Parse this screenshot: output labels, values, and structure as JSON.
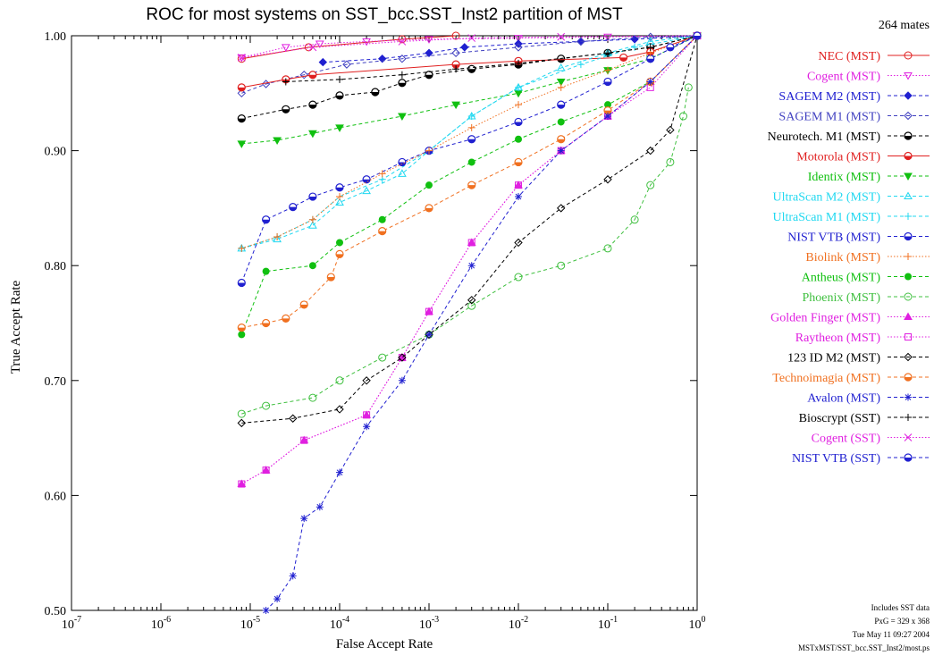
{
  "chart_data": {
    "type": "line",
    "title": "ROC for most systems on SST_bcc.SST_Inst2 partition of MST",
    "xlabel": "False Accept Rate",
    "ylabel": "True Accept Rate",
    "xscale": "log",
    "xlim": [
      1e-07,
      1
    ],
    "ylim": [
      0.5,
      1.0
    ],
    "grid": false,
    "legend_position": "right",
    "mates_note": "264 mates",
    "x_ticks": [
      {
        "value": 1e-07,
        "base": "10",
        "exp": "-7"
      },
      {
        "value": 1e-06,
        "base": "10",
        "exp": "-6"
      },
      {
        "value": 1e-05,
        "base": "10",
        "exp": "-5"
      },
      {
        "value": 0.0001,
        "base": "10",
        "exp": "-4"
      },
      {
        "value": 0.001,
        "base": "10",
        "exp": "-3"
      },
      {
        "value": 0.01,
        "base": "10",
        "exp": "-2"
      },
      {
        "value": 0.1,
        "base": "10",
        "exp": "-1"
      },
      {
        "value": 1,
        "base": "10",
        "exp": "0"
      }
    ],
    "y_ticks": [
      {
        "value": 0.5,
        "label": "0.50"
      },
      {
        "value": 0.6,
        "label": "0.60"
      },
      {
        "value": 0.7,
        "label": "0.70"
      },
      {
        "value": 0.8,
        "label": "0.80"
      },
      {
        "value": 0.9,
        "label": "0.90"
      },
      {
        "value": 1.0,
        "label": "1.00"
      }
    ],
    "footnotes": [
      "Includes SST data",
      "PxG = 329 x 368",
      "Tue May 11 09:27 2004",
      "MSTxMST/SST_bcc.SST_Inst2/most.ps"
    ],
    "series": [
      {
        "name": "NEC (MST)",
        "color": "#e02020",
        "marker": "circle-open",
        "dash": "solid",
        "points": [
          [
            8e-06,
            0.98
          ],
          [
            4.5e-05,
            0.99
          ],
          [
            0.0005,
            0.997
          ],
          [
            0.002,
            1.0
          ]
        ]
      },
      {
        "name": "Cogent (MST)",
        "color": "#e020e0",
        "marker": "triangle-down-open",
        "dash": "dotted",
        "points": [
          [
            8e-06,
            0.981
          ],
          [
            2.5e-05,
            0.99
          ],
          [
            6e-05,
            0.993
          ],
          [
            0.0002,
            0.995
          ],
          [
            0.001,
            0.997
          ],
          [
            0.01,
            0.998
          ],
          [
            0.1,
            0.999
          ],
          [
            1,
            1.0
          ]
        ]
      },
      {
        "name": "SAGEM M2 (MST)",
        "color": "#2020d0",
        "marker": "diamond-filled",
        "dash": "dashed",
        "points": [
          [
            6.5e-05,
            0.977
          ],
          [
            0.0003,
            0.98
          ],
          [
            0.001,
            0.985
          ],
          [
            0.0025,
            0.99
          ],
          [
            0.01,
            0.993
          ],
          [
            0.05,
            0.995
          ],
          [
            0.2,
            0.997
          ],
          [
            1,
            1.0
          ]
        ]
      },
      {
        "name": "SAGEM M1 (MST)",
        "color": "#4040c0",
        "marker": "diamond-open",
        "dash": "dashed",
        "points": [
          [
            8e-06,
            0.95
          ],
          [
            1.5e-05,
            0.958
          ],
          [
            4e-05,
            0.966
          ],
          [
            0.00012,
            0.975
          ],
          [
            0.0005,
            0.98
          ],
          [
            0.002,
            0.985
          ],
          [
            0.01,
            0.99
          ],
          [
            0.05,
            0.995
          ],
          [
            0.3,
            0.999
          ],
          [
            1,
            1.0
          ]
        ]
      },
      {
        "name": "Neurotech. M1 (MST)",
        "color": "#000000",
        "marker": "circle-half",
        "dash": "dashed",
        "points": [
          [
            8e-06,
            0.928
          ],
          [
            2.5e-05,
            0.936
          ],
          [
            5e-05,
            0.94
          ],
          [
            0.0001,
            0.948
          ],
          [
            0.00025,
            0.951
          ],
          [
            0.0005,
            0.959
          ],
          [
            0.001,
            0.966
          ],
          [
            0.003,
            0.971
          ],
          [
            0.01,
            0.975
          ],
          [
            0.03,
            0.98
          ],
          [
            0.1,
            0.985
          ],
          [
            0.3,
            0.99
          ],
          [
            1,
            1.0
          ]
        ]
      },
      {
        "name": "Motorola (MST)",
        "color": "#e02020",
        "marker": "circle-half",
        "dash": "solid",
        "points": [
          [
            8e-06,
            0.955
          ],
          [
            2.5e-05,
            0.962
          ],
          [
            5e-05,
            0.966
          ],
          [
            0.002,
            0.975
          ],
          [
            0.01,
            0.978
          ],
          [
            0.15,
            0.981
          ],
          [
            0.3,
            0.986
          ],
          [
            1,
            1.0
          ]
        ]
      },
      {
        "name": "Identix (MST)",
        "color": "#10c010",
        "marker": "triangle-down-filled",
        "dash": "dashed",
        "points": [
          [
            8e-06,
            0.906
          ],
          [
            2e-05,
            0.909
          ],
          [
            5e-05,
            0.915
          ],
          [
            0.0001,
            0.92
          ],
          [
            0.0005,
            0.93
          ],
          [
            0.002,
            0.94
          ],
          [
            0.01,
            0.95
          ],
          [
            0.03,
            0.96
          ],
          [
            0.1,
            0.97
          ],
          [
            0.3,
            0.98
          ],
          [
            1,
            1.0
          ]
        ]
      },
      {
        "name": "UltraScan M2 (MST)",
        "color": "#20d8f0",
        "marker": "triangle-up-open",
        "dash": "dashed",
        "points": [
          [
            8e-06,
            0.815
          ],
          [
            2e-05,
            0.823
          ],
          [
            5e-05,
            0.835
          ],
          [
            0.0001,
            0.855
          ],
          [
            0.0002,
            0.865
          ],
          [
            0.0005,
            0.88
          ],
          [
            0.001,
            0.9
          ],
          [
            0.003,
            0.93
          ],
          [
            0.01,
            0.955
          ],
          [
            0.03,
            0.972
          ],
          [
            0.1,
            0.985
          ],
          [
            0.3,
            0.995
          ],
          [
            1,
            1.0
          ]
        ]
      },
      {
        "name": "UltraScan M1 (MST)",
        "color": "#20d8f0",
        "marker": "plus",
        "dash": "dashed",
        "points": [
          [
            8e-06,
            0.815
          ],
          [
            2e-05,
            0.825
          ],
          [
            5e-05,
            0.84
          ],
          [
            0.0001,
            0.86
          ],
          [
            0.0003,
            0.875
          ],
          [
            0.001,
            0.9
          ],
          [
            0.003,
            0.93
          ],
          [
            0.01,
            0.955
          ],
          [
            0.05,
            0.975
          ],
          [
            0.2,
            0.99
          ],
          [
            1,
            1.0
          ]
        ]
      },
      {
        "name": "NIST VTB (MST)",
        "color": "#2020d0",
        "marker": "circle-half",
        "dash": "dashed",
        "points": [
          [
            8e-06,
            0.785
          ],
          [
            1.5e-05,
            0.84
          ],
          [
            3e-05,
            0.851
          ],
          [
            5e-05,
            0.86
          ],
          [
            0.0001,
            0.868
          ],
          [
            0.0002,
            0.875
          ],
          [
            0.0005,
            0.89
          ],
          [
            0.001,
            0.9
          ],
          [
            0.003,
            0.91
          ],
          [
            0.01,
            0.925
          ],
          [
            0.03,
            0.94
          ],
          [
            0.1,
            0.96
          ],
          [
            0.3,
            0.98
          ],
          [
            1,
            1.0
          ]
        ]
      },
      {
        "name": "Biolink (MST)",
        "color": "#f07020",
        "marker": "plus",
        "dash": "dotted",
        "points": [
          [
            8e-06,
            0.815
          ],
          [
            2e-05,
            0.825
          ],
          [
            5e-05,
            0.84
          ],
          [
            0.0001,
            0.86
          ],
          [
            0.0003,
            0.88
          ],
          [
            0.001,
            0.9
          ],
          [
            0.003,
            0.92
          ],
          [
            0.01,
            0.94
          ],
          [
            0.03,
            0.955
          ],
          [
            0.1,
            0.97
          ],
          [
            0.3,
            0.985
          ],
          [
            1,
            1.0
          ]
        ]
      },
      {
        "name": "Antheus (MST)",
        "color": "#10c010",
        "marker": "circle-filled",
        "dash": "dashed",
        "points": [
          [
            8e-06,
            0.74
          ],
          [
            1.5e-05,
            0.795
          ],
          [
            5e-05,
            0.8
          ],
          [
            0.0001,
            0.82
          ],
          [
            0.0003,
            0.84
          ],
          [
            0.001,
            0.87
          ],
          [
            0.003,
            0.89
          ],
          [
            0.01,
            0.91
          ],
          [
            0.03,
            0.925
          ],
          [
            0.1,
            0.94
          ],
          [
            0.3,
            0.96
          ],
          [
            1,
            1.0
          ]
        ]
      },
      {
        "name": "Phoenix (MST)",
        "color": "#40c040",
        "marker": "circle-open",
        "dash": "dashed",
        "points": [
          [
            8e-06,
            0.671
          ],
          [
            1.5e-05,
            0.678
          ],
          [
            5e-05,
            0.685
          ],
          [
            0.0001,
            0.7
          ],
          [
            0.0003,
            0.72
          ],
          [
            0.001,
            0.74
          ],
          [
            0.003,
            0.765
          ],
          [
            0.01,
            0.79
          ],
          [
            0.03,
            0.8
          ],
          [
            0.1,
            0.815
          ],
          [
            0.2,
            0.84
          ],
          [
            0.3,
            0.87
          ],
          [
            0.5,
            0.89
          ],
          [
            0.7,
            0.93
          ],
          [
            0.8,
            0.955
          ]
        ]
      },
      {
        "name": "Golden Finger (MST)",
        "color": "#e020e0",
        "marker": "triangle-up-filled",
        "dash": "dotted",
        "points": [
          [
            8e-06,
            0.61
          ],
          [
            1.5e-05,
            0.622
          ],
          [
            4e-05,
            0.648
          ],
          [
            0.0002,
            0.67
          ],
          [
            0.0005,
            0.72
          ],
          [
            0.001,
            0.76
          ],
          [
            0.003,
            0.82
          ],
          [
            0.01,
            0.87
          ],
          [
            0.03,
            0.9
          ],
          [
            0.1,
            0.93
          ],
          [
            0.3,
            0.96
          ],
          [
            1,
            1.0
          ]
        ]
      },
      {
        "name": "Raytheon (MST)",
        "color": "#e020e0",
        "marker": "square-open",
        "dash": "dotted",
        "points": [
          [
            8e-06,
            0.61
          ],
          [
            1.5e-05,
            0.622
          ],
          [
            4e-05,
            0.648
          ],
          [
            0.0002,
            0.67
          ],
          [
            0.0005,
            0.72
          ],
          [
            0.001,
            0.76
          ],
          [
            0.003,
            0.82
          ],
          [
            0.01,
            0.87
          ],
          [
            0.03,
            0.9
          ],
          [
            0.1,
            0.93
          ],
          [
            0.3,
            0.955
          ],
          [
            1,
            1.0
          ]
        ]
      },
      {
        "name": "123 ID M2 (MST)",
        "color": "#000000",
        "marker": "diamond-open",
        "dash": "dashed",
        "points": [
          [
            8e-06,
            0.663
          ],
          [
            3e-05,
            0.667
          ],
          [
            0.0001,
            0.675
          ],
          [
            0.0002,
            0.7
          ],
          [
            0.0005,
            0.72
          ],
          [
            0.001,
            0.74
          ],
          [
            0.003,
            0.77
          ],
          [
            0.01,
            0.82
          ],
          [
            0.03,
            0.85
          ],
          [
            0.1,
            0.875
          ],
          [
            0.3,
            0.9
          ],
          [
            0.5,
            0.918
          ],
          [
            1,
            1.0
          ]
        ]
      },
      {
        "name": "Technoimagia (MST)",
        "color": "#f07020",
        "marker": "circle-half",
        "dash": "dashed",
        "points": [
          [
            8e-06,
            0.746
          ],
          [
            1.5e-05,
            0.75
          ],
          [
            2.5e-05,
            0.754
          ],
          [
            4e-05,
            0.766
          ],
          [
            8e-05,
            0.79
          ],
          [
            0.0001,
            0.81
          ],
          [
            0.0003,
            0.83
          ],
          [
            0.001,
            0.85
          ],
          [
            0.003,
            0.87
          ],
          [
            0.01,
            0.89
          ],
          [
            0.03,
            0.91
          ],
          [
            0.1,
            0.935
          ],
          [
            0.3,
            0.96
          ],
          [
            1,
            1.0
          ]
        ]
      },
      {
        "name": "Avalon (MST)",
        "color": "#2020d0",
        "marker": "star",
        "dash": "dashed",
        "points": [
          [
            1.5e-05,
            0.5
          ],
          [
            2e-05,
            0.51
          ],
          [
            3e-05,
            0.53
          ],
          [
            4e-05,
            0.58
          ],
          [
            6e-05,
            0.59
          ],
          [
            0.0001,
            0.62
          ],
          [
            0.0002,
            0.66
          ],
          [
            0.0005,
            0.7
          ],
          [
            0.001,
            0.74
          ],
          [
            0.003,
            0.8
          ],
          [
            0.01,
            0.86
          ],
          [
            0.03,
            0.9
          ],
          [
            0.1,
            0.93
          ],
          [
            0.3,
            0.96
          ],
          [
            1,
            1.0
          ]
        ]
      },
      {
        "name": "Bioscrypt (SST)",
        "color": "#000000",
        "marker": "plus",
        "dash": "dashed",
        "points": [
          [
            2.5e-05,
            0.96
          ],
          [
            0.0001,
            0.962
          ],
          [
            0.0005,
            0.966
          ],
          [
            0.002,
            0.971
          ],
          [
            0.01,
            0.976
          ],
          [
            0.1,
            0.985
          ],
          [
            0.3,
            0.99
          ],
          [
            1,
            1.0
          ]
        ]
      },
      {
        "name": "Cogent (SST)",
        "color": "#e020e0",
        "marker": "cross",
        "dash": "dotted",
        "points": [
          [
            8e-06,
            0.981
          ],
          [
            5e-05,
            0.99
          ],
          [
            0.0005,
            0.995
          ],
          [
            0.003,
            0.998
          ],
          [
            0.03,
            0.999
          ],
          [
            1,
            1.0
          ]
        ]
      },
      {
        "name": "NIST VTB (SST)",
        "color": "#2020d0",
        "marker": "circle-half",
        "dash": "dashed",
        "points": [
          [
            0.5,
            0.99
          ],
          [
            1,
            1.0
          ]
        ]
      }
    ]
  }
}
